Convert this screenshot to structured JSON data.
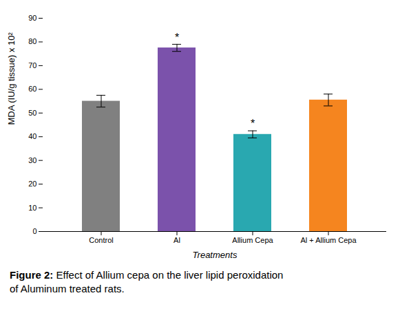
{
  "chart_data": {
    "type": "bar",
    "caption": "Figure 2: Effect of Allium cepa on the liver lipid peroxidation\nof Aluminum treated rats.",
    "xlabel": "Treatments",
    "ylabel": "MDA (IU/g tissue) x 10²",
    "categories": [
      "Control",
      "Al",
      "Allium Cepa",
      "Al + Allium Cepa"
    ],
    "values": [
      55.0,
      77.5,
      41.0,
      55.5
    ],
    "errors": [
      2.5,
      1.5,
      1.5,
      2.5
    ],
    "colors": [
      "#808080",
      "#7B52AB",
      "#29A8B0",
      "#F5851F"
    ],
    "ylim": [
      0,
      90
    ],
    "yticks": [
      0,
      10,
      20,
      30,
      40,
      50,
      60,
      70,
      80,
      90
    ],
    "grid": false,
    "annotations": [
      {
        "category": "Al",
        "text": "*"
      },
      {
        "category": "Allium Cepa",
        "text": "*"
      }
    ]
  }
}
